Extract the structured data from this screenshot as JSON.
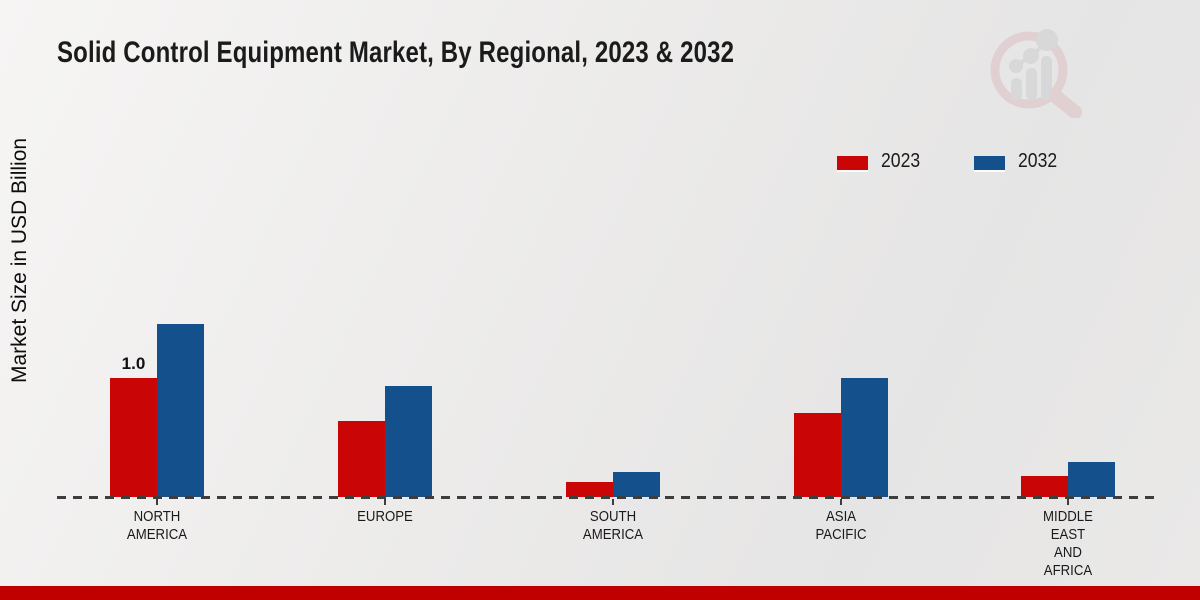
{
  "page": {
    "title": "Solid Control Equipment Market, By Regional, 2023 & 2032",
    "footer_color": "#c00000"
  },
  "chart_data": {
    "type": "bar",
    "title": "Solid Control Equipment Market, By Regional, 2023 & 2032",
    "xlabel": "",
    "ylabel": "Market Size in USD Billion",
    "categories": [
      "NORTH\nAMERICA",
      "EUROPE",
      "SOUTH\nAMERICA",
      "ASIA\nPACIFIC",
      "MIDDLE\nEAST\nAND\nAFRICA"
    ],
    "series": [
      {
        "name": "2023",
        "color": "#c90505",
        "values": [
          1.0,
          0.64,
          0.13,
          0.71,
          0.18
        ]
      },
      {
        "name": "2032",
        "color": "#14508c",
        "values": [
          1.45,
          0.93,
          0.21,
          1.0,
          0.29
        ]
      }
    ],
    "bar_labels": [
      {
        "category_index": 0,
        "series_index": 0,
        "text": "1.0"
      }
    ],
    "ylim": [
      0,
      1.6
    ],
    "grid": false,
    "legend_position": "top-right",
    "baseline_style": "dashed",
    "axis_label_color": "#1a1a1a"
  },
  "watermark": {
    "name": "market-research-magnifier-logo"
  }
}
